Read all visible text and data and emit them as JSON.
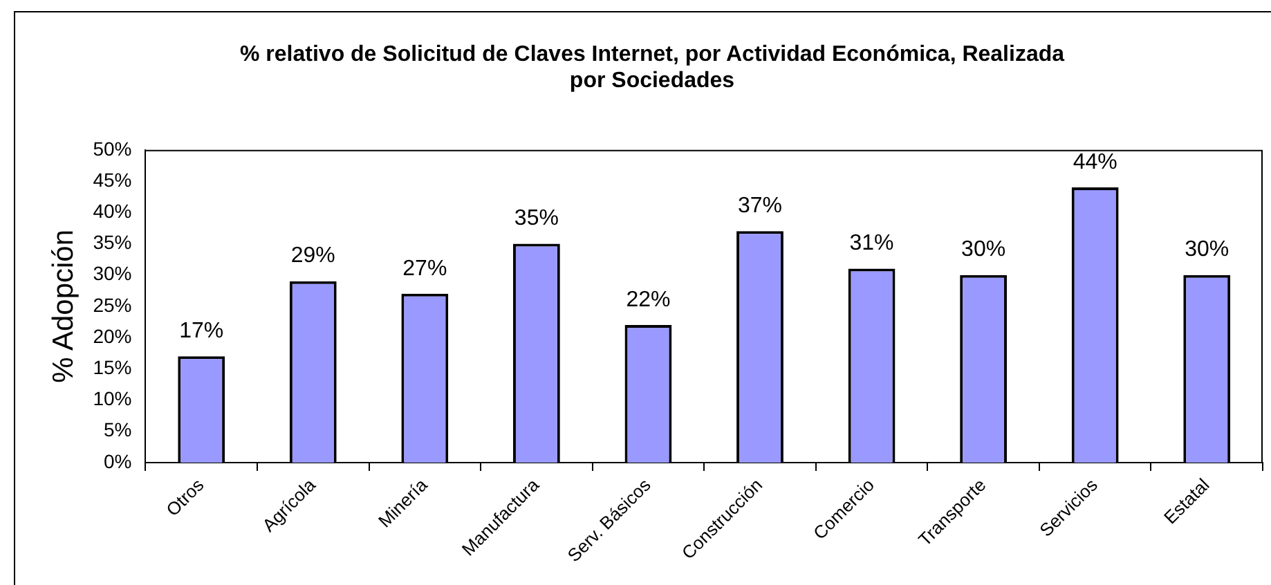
{
  "chart_data": {
    "type": "bar",
    "title": "% relativo de Solicitud de Claves Internet, por Actividad Económica, Realizada por Sociedades",
    "ylabel": "% Adopción",
    "categories": [
      "Otros",
      "Agrícola",
      "Minería",
      "Manufactura",
      "Serv. Básicos",
      "Construcción",
      "Comercio",
      "Transporte",
      "Servicios",
      "Estatal"
    ],
    "values": [
      17,
      29,
      27,
      35,
      22,
      37,
      31,
      30,
      44,
      30
    ],
    "value_labels": [
      "17%",
      "29%",
      "27%",
      "35%",
      "22%",
      "37%",
      "31%",
      "30%",
      "44%",
      "30%"
    ],
    "color": "#9999ff",
    "ylim": [
      0,
      50
    ],
    "yticks": [
      {
        "value": 0,
        "label": "0%"
      },
      {
        "value": 5,
        "label": "5%"
      },
      {
        "value": 10,
        "label": "10%"
      },
      {
        "value": 15,
        "label": "15%"
      },
      {
        "value": 20,
        "label": "20%"
      },
      {
        "value": 25,
        "label": "25%"
      },
      {
        "value": 30,
        "label": "30%"
      },
      {
        "value": 35,
        "label": "35%"
      },
      {
        "value": 40,
        "label": "40%"
      },
      {
        "value": 45,
        "label": "45%"
      },
      {
        "value": 50,
        "label": "50%"
      }
    ],
    "grid": false,
    "legend": false
  }
}
